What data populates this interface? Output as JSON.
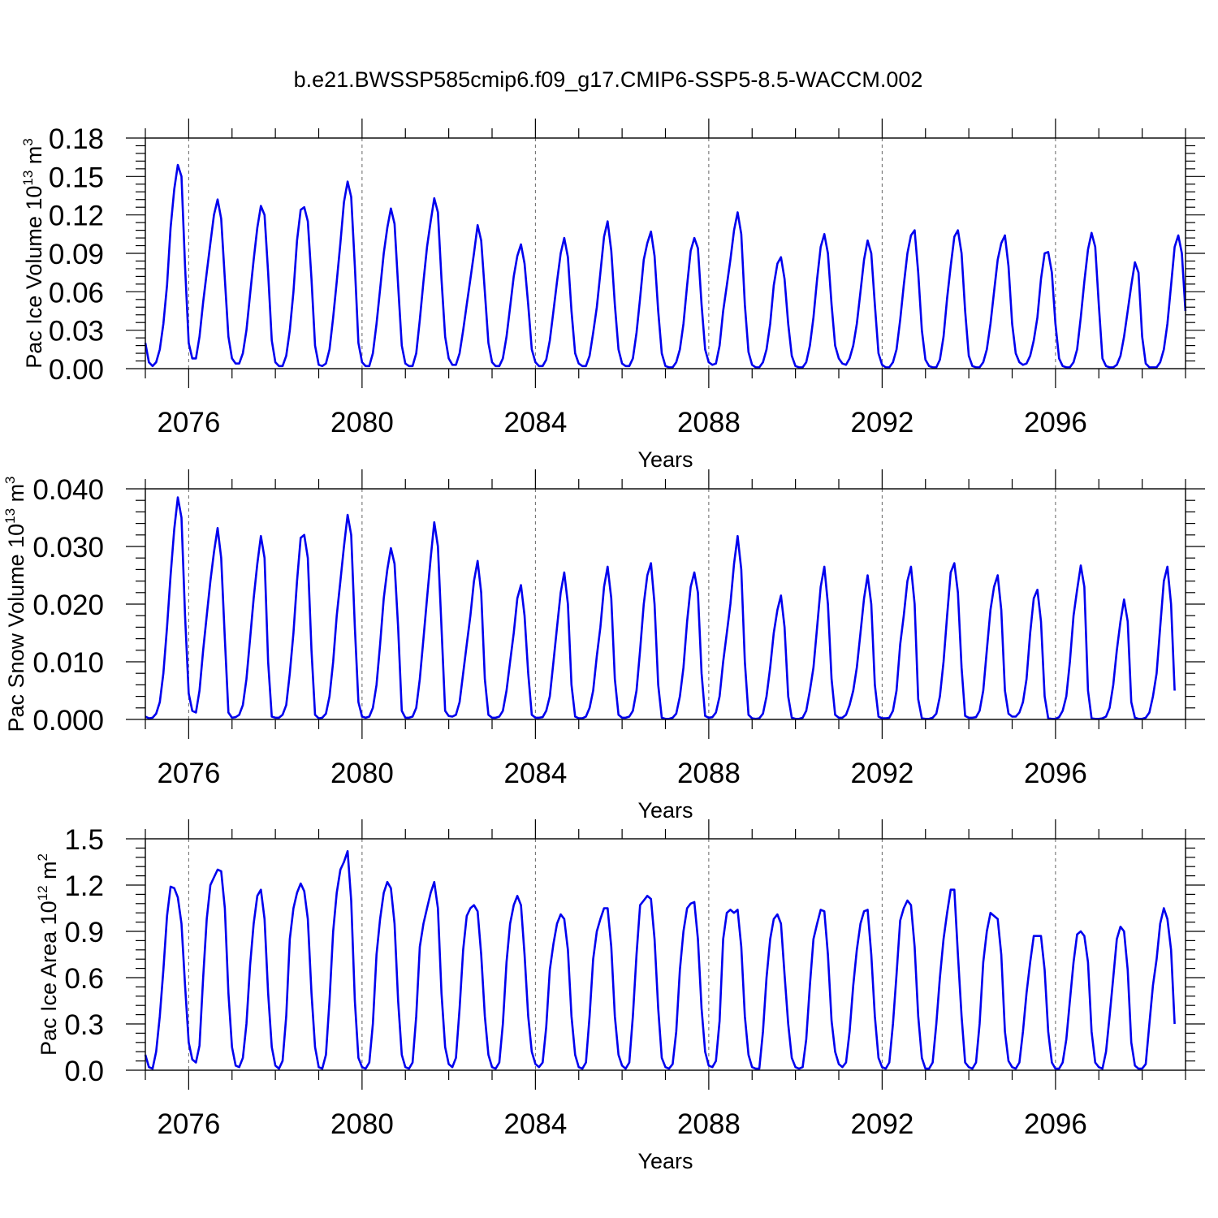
{
  "figure": {
    "title": "b.e21.BWSSP585cmip6.f09_g17.CMIP6-SSP5-8.5-WACCM.002",
    "line_color": "#0000ee"
  },
  "chart_data": [
    {
      "type": "line",
      "ylabel": "Pac Ice Volume 10",
      "ylabel_exp": "13",
      "ylabel_unit": " m",
      "ylabel_unit_exp": "3",
      "xlabel": "Years",
      "xlim": [
        2075.0,
        2099.0
      ],
      "ylim": [
        0,
        0.18
      ],
      "yticks": [
        "0.00",
        "0.03",
        "0.06",
        "0.09",
        "0.12",
        "0.15",
        "0.18"
      ],
      "ytick_values": [
        0,
        0.03,
        0.06,
        0.09,
        0.12,
        0.15,
        0.18
      ],
      "xticks": [
        "2076",
        "2080",
        "2084",
        "2088",
        "2092",
        "2096"
      ],
      "xtick_values": [
        2076,
        2080,
        2084,
        2088,
        2092,
        2096
      ],
      "grid": "vertical-dashed",
      "series": [
        {
          "x_start": 2075.0,
          "x_step": 0.08333,
          "values": [
            0.02,
            0.005,
            0.002,
            0.005,
            0.015,
            0.035,
            0.065,
            0.11,
            0.14,
            0.159,
            0.15,
            0.08,
            0.02,
            0.008,
            0.008,
            0.025,
            0.052,
            0.075,
            0.098,
            0.12,
            0.132,
            0.117,
            0.07,
            0.025,
            0.008,
            0.004,
            0.004,
            0.012,
            0.03,
            0.058,
            0.085,
            0.11,
            0.127,
            0.12,
            0.075,
            0.022,
            0.005,
            0.002,
            0.002,
            0.01,
            0.03,
            0.06,
            0.1,
            0.124,
            0.126,
            0.115,
            0.07,
            0.018,
            0.003,
            0.002,
            0.004,
            0.015,
            0.04,
            0.068,
            0.098,
            0.13,
            0.146,
            0.134,
            0.08,
            0.02,
            0.005,
            0.002,
            0.002,
            0.012,
            0.035,
            0.062,
            0.09,
            0.11,
            0.125,
            0.113,
            0.065,
            0.018,
            0.004,
            0.002,
            0.002,
            0.012,
            0.038,
            0.068,
            0.095,
            0.115,
            0.133,
            0.122,
            0.07,
            0.025,
            0.008,
            0.003,
            0.003,
            0.012,
            0.03,
            0.05,
            0.07,
            0.09,
            0.112,
            0.1,
            0.06,
            0.02,
            0.005,
            0.002,
            0.002,
            0.008,
            0.025,
            0.048,
            0.072,
            0.088,
            0.097,
            0.082,
            0.05,
            0.015,
            0.005,
            0.002,
            0.002,
            0.007,
            0.022,
            0.045,
            0.068,
            0.09,
            0.102,
            0.087,
            0.045,
            0.012,
            0.004,
            0.002,
            0.002,
            0.01,
            0.028,
            0.048,
            0.075,
            0.103,
            0.115,
            0.092,
            0.05,
            0.015,
            0.004,
            0.002,
            0.002,
            0.008,
            0.028,
            0.055,
            0.085,
            0.098,
            0.107,
            0.088,
            0.045,
            0.012,
            0.002,
            0.001,
            0.001,
            0.005,
            0.015,
            0.035,
            0.065,
            0.092,
            0.102,
            0.094,
            0.05,
            0.015,
            0.005,
            0.003,
            0.004,
            0.018,
            0.045,
            0.065,
            0.085,
            0.108,
            0.122,
            0.105,
            0.05,
            0.013,
            0.003,
            0.001,
            0.001,
            0.005,
            0.015,
            0.035,
            0.065,
            0.082,
            0.087,
            0.07,
            0.035,
            0.01,
            0.002,
            0.001,
            0.001,
            0.005,
            0.018,
            0.04,
            0.07,
            0.095,
            0.105,
            0.09,
            0.05,
            0.018,
            0.008,
            0.004,
            0.003,
            0.008,
            0.018,
            0.035,
            0.06,
            0.085,
            0.1,
            0.09,
            0.05,
            0.012,
            0.003,
            0.001,
            0.001,
            0.005,
            0.015,
            0.038,
            0.065,
            0.09,
            0.104,
            0.108,
            0.075,
            0.03,
            0.007,
            0.002,
            0.001,
            0.001,
            0.007,
            0.025,
            0.055,
            0.08,
            0.103,
            0.108,
            0.09,
            0.045,
            0.01,
            0.002,
            0.001,
            0.001,
            0.005,
            0.015,
            0.035,
            0.06,
            0.085,
            0.098,
            0.104,
            0.08,
            0.035,
            0.012,
            0.005,
            0.003,
            0.004,
            0.01,
            0.022,
            0.04,
            0.07,
            0.09,
            0.091,
            0.075,
            0.035,
            0.008,
            0.002,
            0.001,
            0.001,
            0.005,
            0.015,
            0.04,
            0.068,
            0.093,
            0.106,
            0.095,
            0.05,
            0.008,
            0.002,
            0.001,
            0.001,
            0.003,
            0.01,
            0.025,
            0.045,
            0.065,
            0.083,
            0.075,
            0.025,
            0.004,
            0.001,
            0.001,
            0.001,
            0.005,
            0.015,
            0.035,
            0.065,
            0.095,
            0.104,
            0.09,
            0.045
          ]
        }
      ]
    },
    {
      "type": "line",
      "ylabel": "Pac Snow Volume 10",
      "ylabel_exp": "13",
      "ylabel_unit": " m",
      "ylabel_unit_exp": "3",
      "xlabel": "Years",
      "xlim": [
        2075.0,
        2099.0
      ],
      "ylim": [
        0,
        0.04
      ],
      "yticks": [
        "0.000",
        "0.010",
        "0.020",
        "0.030",
        "0.040"
      ],
      "ytick_values": [
        0,
        0.01,
        0.02,
        0.03,
        0.04
      ],
      "xticks": [
        "2076",
        "2080",
        "2084",
        "2088",
        "2092",
        "2096"
      ],
      "xtick_values": [
        2076,
        2080,
        2084,
        2088,
        2092,
        2096
      ],
      "grid": "vertical-dashed",
      "series": [
        {
          "x_start": 2075.0,
          "x_step": 0.08333,
          "values": [
            0.0005,
            0.0002,
            0.0003,
            0.001,
            0.003,
            0.008,
            0.016,
            0.025,
            0.033,
            0.0385,
            0.035,
            0.018,
            0.0045,
            0.0015,
            0.0012,
            0.005,
            0.012,
            0.018,
            0.024,
            0.029,
            0.0332,
            0.028,
            0.014,
            0.0012,
            0.0003,
            0.0004,
            0.0008,
            0.0025,
            0.007,
            0.014,
            0.021,
            0.027,
            0.0318,
            0.028,
            0.01,
            0.0005,
            0.0003,
            0.0003,
            0.0008,
            0.0025,
            0.008,
            0.015,
            0.024,
            0.0315,
            0.032,
            0.028,
            0.012,
            0.0008,
            0.0002,
            0.0003,
            0.001,
            0.004,
            0.01,
            0.018,
            0.024,
            0.03,
            0.0355,
            0.032,
            0.016,
            0.003,
            0.0005,
            0.0003,
            0.0005,
            0.002,
            0.006,
            0.013,
            0.021,
            0.026,
            0.0297,
            0.027,
            0.016,
            0.0015,
            0.0003,
            0.0003,
            0.0005,
            0.002,
            0.007,
            0.014,
            0.021,
            0.028,
            0.0342,
            0.03,
            0.016,
            0.0015,
            0.0006,
            0.0005,
            0.0008,
            0.003,
            0.008,
            0.013,
            0.018,
            0.024,
            0.0275,
            0.022,
            0.007,
            0.0008,
            0.0003,
            0.0003,
            0.0005,
            0.0015,
            0.005,
            0.01,
            0.015,
            0.021,
            0.0233,
            0.018,
            0.008,
            0.0008,
            0.0003,
            0.0003,
            0.0004,
            0.0015,
            0.004,
            0.01,
            0.016,
            0.022,
            0.0255,
            0.02,
            0.006,
            0.0005,
            0.0002,
            0.0002,
            0.0005,
            0.002,
            0.005,
            0.011,
            0.016,
            0.023,
            0.0265,
            0.021,
            0.007,
            0.0008,
            0.0003,
            0.0003,
            0.0005,
            0.0015,
            0.005,
            0.012,
            0.02,
            0.025,
            0.0271,
            0.02,
            0.006,
            0.0003,
            0.0001,
            0.0001,
            0.0003,
            0.001,
            0.004,
            0.009,
            0.017,
            0.023,
            0.0255,
            0.022,
            0.008,
            0.0006,
            0.0003,
            0.0004,
            0.0012,
            0.004,
            0.01,
            0.015,
            0.02,
            0.027,
            0.0318,
            0.026,
            0.01,
            0.0008,
            0.0002,
            0.0001,
            0.0002,
            0.001,
            0.004,
            0.009,
            0.015,
            0.019,
            0.0215,
            0.016,
            0.004,
            0.0003,
            0.0001,
            0.0001,
            0.0003,
            0.0015,
            0.005,
            0.009,
            0.016,
            0.023,
            0.0265,
            0.02,
            0.007,
            0.0008,
            0.0003,
            0.0003,
            0.0008,
            0.0025,
            0.005,
            0.009,
            0.015,
            0.021,
            0.025,
            0.02,
            0.006,
            0.0005,
            0.0002,
            0.0002,
            0.0003,
            0.0015,
            0.005,
            0.013,
            0.018,
            0.024,
            0.0265,
            0.02,
            0.0035,
            0.0002,
            0.0001,
            0.0001,
            0.0003,
            0.001,
            0.004,
            0.01,
            0.018,
            0.0255,
            0.0271,
            0.022,
            0.009,
            0.0006,
            0.0003,
            0.0003,
            0.0004,
            0.0015,
            0.005,
            0.012,
            0.019,
            0.023,
            0.025,
            0.019,
            0.005,
            0.001,
            0.0005,
            0.0005,
            0.0012,
            0.003,
            0.007,
            0.015,
            0.021,
            0.0225,
            0.017,
            0.004,
            0.0002,
            0.0001,
            0.0001,
            0.0004,
            0.0015,
            0.004,
            0.01,
            0.018,
            0.0225,
            0.0267,
            0.023,
            0.005,
            0.0002,
            0.0001,
            0.0001,
            0.0002,
            0.0005,
            0.002,
            0.006,
            0.012,
            0.017,
            0.0208,
            0.017,
            0.003,
            0.0003,
            0.0001,
            0.0001,
            0.0003,
            0.0012,
            0.004,
            0.008,
            0.016,
            0.024,
            0.0265,
            0.02,
            0.005
          ]
        }
      ]
    },
    {
      "type": "line",
      "ylabel": "Pac Ice Area 10",
      "ylabel_exp": "12",
      "ylabel_unit": " m",
      "ylabel_unit_exp": "2",
      "xlabel": "Years",
      "xlim": [
        2075.0,
        2099.0
      ],
      "ylim": [
        0,
        1.5
      ],
      "yticks": [
        "0.0",
        "0.3",
        "0.6",
        "0.9",
        "1.2",
        "1.5"
      ],
      "ytick_values": [
        0,
        0.3,
        0.6,
        0.9,
        1.2,
        1.5
      ],
      "xticks": [
        "2076",
        "2080",
        "2084",
        "2088",
        "2092",
        "2096"
      ],
      "xtick_values": [
        2076,
        2080,
        2084,
        2088,
        2092,
        2096
      ],
      "grid": "vertical-dashed",
      "series": [
        {
          "x_start": 2075.0,
          "x_step": 0.08333,
          "values": [
            0.1,
            0.02,
            0.01,
            0.12,
            0.35,
            0.65,
            1.0,
            1.19,
            1.18,
            1.12,
            0.95,
            0.55,
            0.18,
            0.07,
            0.05,
            0.16,
            0.6,
            0.98,
            1.2,
            1.25,
            1.3,
            1.29,
            1.05,
            0.5,
            0.15,
            0.03,
            0.02,
            0.08,
            0.3,
            0.68,
            0.95,
            1.13,
            1.17,
            0.98,
            0.5,
            0.15,
            0.03,
            0.01,
            0.06,
            0.35,
            0.85,
            1.05,
            1.15,
            1.21,
            1.16,
            0.98,
            0.5,
            0.15,
            0.02,
            0.01,
            0.1,
            0.45,
            0.9,
            1.15,
            1.3,
            1.35,
            1.42,
            1.1,
            0.45,
            0.08,
            0.02,
            0.01,
            0.05,
            0.3,
            0.75,
            0.98,
            1.15,
            1.22,
            1.18,
            0.95,
            0.45,
            0.1,
            0.02,
            0.01,
            0.05,
            0.35,
            0.8,
            0.95,
            1.05,
            1.15,
            1.22,
            1.05,
            0.5,
            0.15,
            0.04,
            0.02,
            0.08,
            0.4,
            0.78,
            1.0,
            1.05,
            1.07,
            1.03,
            0.75,
            0.35,
            0.1,
            0.02,
            0.01,
            0.05,
            0.3,
            0.7,
            0.95,
            1.07,
            1.13,
            1.07,
            0.75,
            0.35,
            0.12,
            0.04,
            0.02,
            0.05,
            0.28,
            0.65,
            0.82,
            0.95,
            1.01,
            0.98,
            0.78,
            0.35,
            0.1,
            0.02,
            0.01,
            0.05,
            0.35,
            0.72,
            0.9,
            0.98,
            1.05,
            1.05,
            0.8,
            0.35,
            0.1,
            0.03,
            0.01,
            0.05,
            0.35,
            0.75,
            1.07,
            1.1,
            1.13,
            1.11,
            0.85,
            0.4,
            0.08,
            0.02,
            0.01,
            0.04,
            0.25,
            0.65,
            0.9,
            1.05,
            1.08,
            1.09,
            0.85,
            0.4,
            0.12,
            0.03,
            0.02,
            0.06,
            0.32,
            0.85,
            1.02,
            1.04,
            1.02,
            1.04,
            0.8,
            0.35,
            0.1,
            0.02,
            0.01,
            0.01,
            0.25,
            0.6,
            0.85,
            0.98,
            1.01,
            0.95,
            0.62,
            0.3,
            0.08,
            0.02,
            0.01,
            0.02,
            0.2,
            0.55,
            0.85,
            0.95,
            1.04,
            1.03,
            0.75,
            0.32,
            0.12,
            0.04,
            0.02,
            0.05,
            0.25,
            0.55,
            0.78,
            0.95,
            1.03,
            1.04,
            0.75,
            0.35,
            0.08,
            0.02,
            0.01,
            0.05,
            0.3,
            0.62,
            0.97,
            1.05,
            1.1,
            1.07,
            0.8,
            0.35,
            0.08,
            0.01,
            0.01,
            0.05,
            0.3,
            0.6,
            0.85,
            1.02,
            1.17,
            1.17,
            0.75,
            0.35,
            0.05,
            0.02,
            0.01,
            0.05,
            0.3,
            0.7,
            0.9,
            1.02,
            1.0,
            0.98,
            0.75,
            0.25,
            0.06,
            0.02,
            0.01,
            0.05,
            0.25,
            0.5,
            0.7,
            0.87,
            0.87,
            0.87,
            0.65,
            0.25,
            0.05,
            0.01,
            0.01,
            0.05,
            0.2,
            0.45,
            0.7,
            0.88,
            0.9,
            0.87,
            0.7,
            0.25,
            0.05,
            0.02,
            0.01,
            0.12,
            0.35,
            0.6,
            0.85,
            0.93,
            0.9,
            0.65,
            0.18,
            0.03,
            0.01,
            0.01,
            0.04,
            0.3,
            0.55,
            0.72,
            0.95,
            1.05,
            0.98,
            0.78,
            0.3
          ]
        }
      ]
    }
  ]
}
